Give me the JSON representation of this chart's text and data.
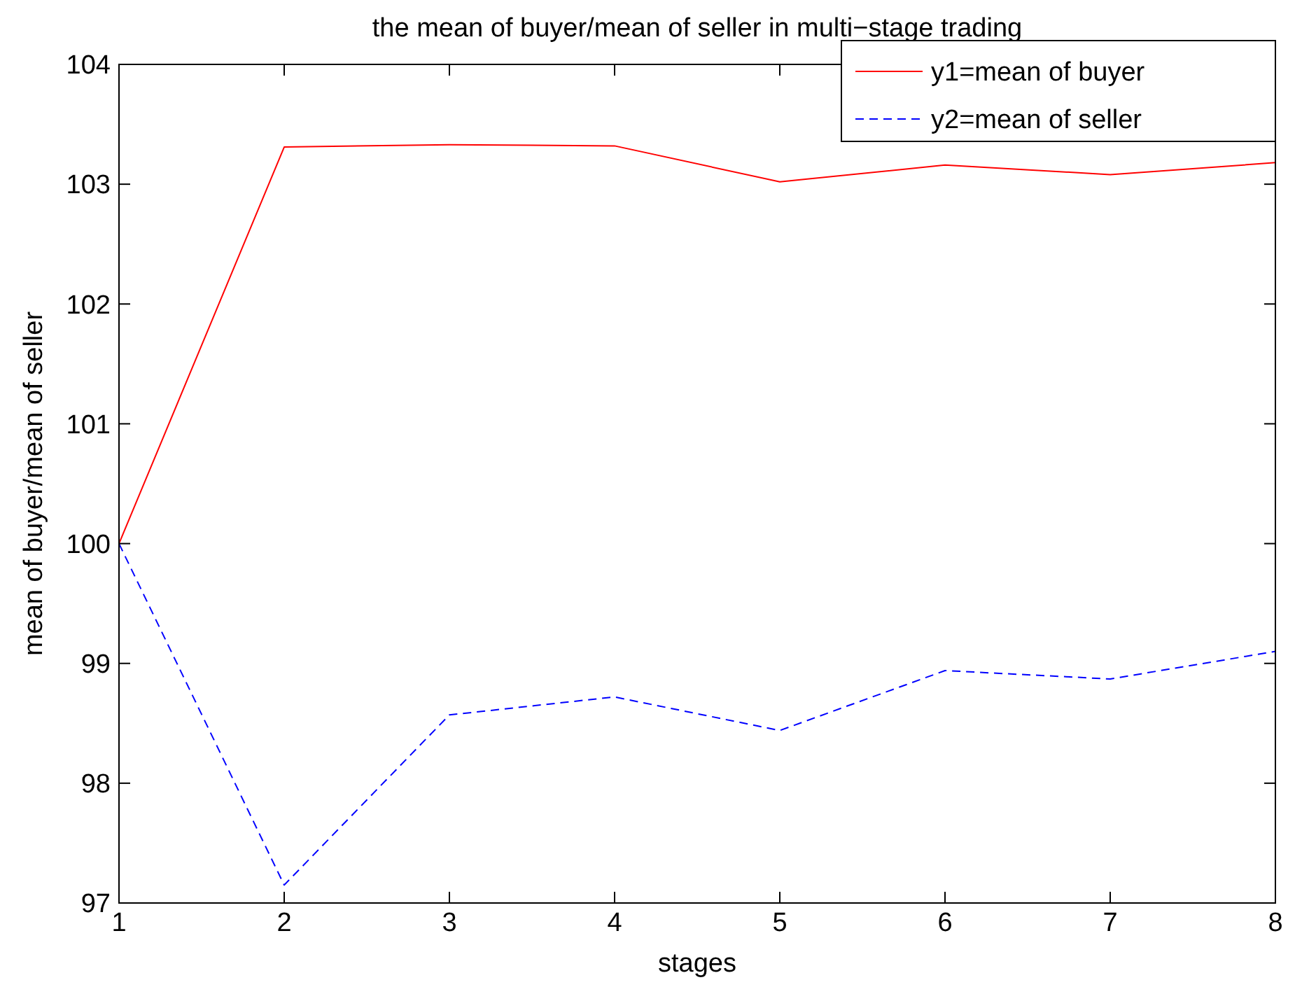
{
  "chart_data": {
    "type": "line",
    "title": "the mean of buyer/mean of seller in multi−stage trading",
    "xlabel": "stages",
    "ylabel": "mean of buyer/mean of seller",
    "x": [
      1,
      2,
      3,
      4,
      5,
      6,
      7,
      8
    ],
    "series": [
      {
        "name": "y1=mean of buyer",
        "color": "#ff0000",
        "line_style": "solid",
        "values": [
          100,
          103.31,
          103.33,
          103.32,
          103.02,
          103.16,
          103.08,
          103.18
        ]
      },
      {
        "name": "y2=mean of seller",
        "color": "#0000ff",
        "line_style": "dashed",
        "values": [
          100,
          97.15,
          98.57,
          98.72,
          98.44,
          98.94,
          98.87,
          99.1
        ]
      }
    ],
    "xlim": [
      1,
      8
    ],
    "xticks": [
      1,
      2,
      3,
      4,
      5,
      6,
      7,
      8
    ],
    "ylim": [
      97,
      104
    ],
    "yticks": [
      97,
      98,
      99,
      100,
      101,
      102,
      103,
      104
    ],
    "grid": false,
    "legend": "top right",
    "marker": "none"
  }
}
